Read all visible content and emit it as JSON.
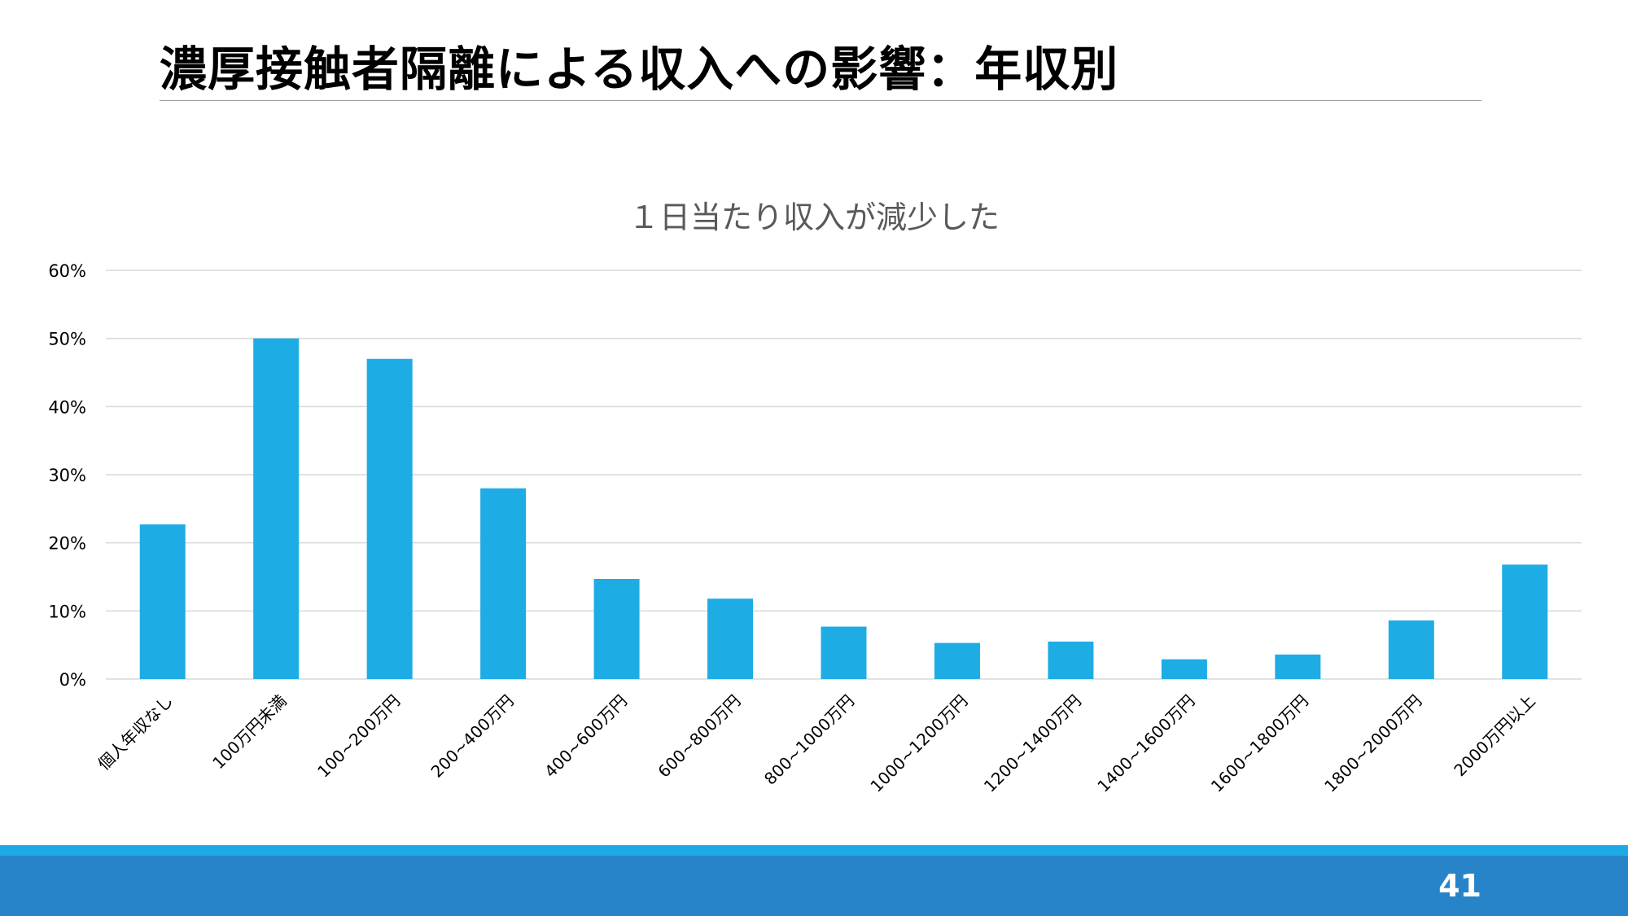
{
  "slide": {
    "title": "濃厚接触者隔離による収入への影響：年収別",
    "page_number": "41"
  },
  "colors": {
    "bar": "#1eace4",
    "grid": "#d9d9d9",
    "footer_stripe": "#1eaae7",
    "footer_bar": "#2884c8"
  },
  "chart_data": {
    "type": "bar",
    "title": "１日当たり収入が減少した",
    "xlabel": "",
    "ylabel": "",
    "ylim": [
      0,
      60
    ],
    "yticks": [
      0,
      10,
      20,
      30,
      40,
      50,
      60
    ],
    "ytick_labels": [
      "0%",
      "10%",
      "20%",
      "30%",
      "40%",
      "50%",
      "60%"
    ],
    "grid": true,
    "legend": "none",
    "categories": [
      "個人年収なし",
      "100万円未満",
      "100~200万円",
      "200~400万円",
      "400~600万円",
      "600~800万円",
      "800~1000万円",
      "1000~1200万円",
      "1200~1400万円",
      "1400~1600万円",
      "1600~1800万円",
      "1800~2000万円",
      "2000万円以上"
    ],
    "values": [
      22.7,
      50.0,
      47.0,
      28.0,
      14.7,
      11.8,
      7.7,
      5.3,
      5.5,
      2.9,
      3.6,
      8.6,
      16.8
    ]
  }
}
